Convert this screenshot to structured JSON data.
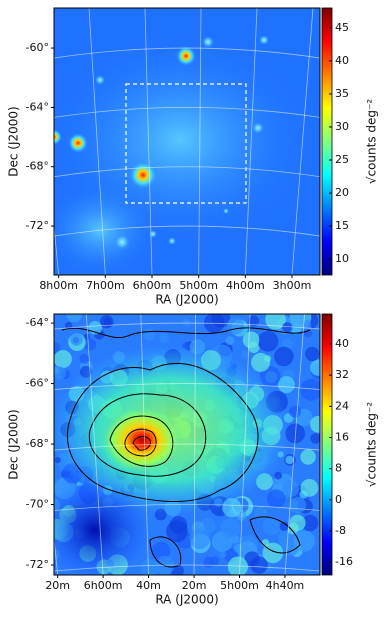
{
  "chart_data": [
    {
      "type": "heatmap",
      "xlabel": "RA (J2000)",
      "ylabel": "Dec (J2000)",
      "colorbar_label": "√counts deg⁻²",
      "xlim": [
        8.1,
        2.4
      ],
      "xticks": [
        {
          "value": 8,
          "label": "8h00m"
        },
        {
          "value": 7,
          "label": "7h00m"
        },
        {
          "value": 6,
          "label": "6h00m"
        },
        {
          "value": 5,
          "label": "5h00m"
        },
        {
          "value": 4,
          "label": "4h00m"
        },
        {
          "value": 3,
          "label": "3h00m"
        }
      ],
      "ylim": [
        -57.3,
        -75.3
      ],
      "yticks": [
        {
          "value": -60,
          "label": "-60°"
        },
        {
          "value": -64,
          "label": "-64°"
        },
        {
          "value": -68,
          "label": "-68°"
        },
        {
          "value": -72,
          "label": "-72°"
        }
      ],
      "clim": [
        7.6,
        48
      ],
      "cticks": [
        10,
        15,
        20,
        25,
        30,
        35,
        40,
        45
      ],
      "colormap": "jet",
      "grid": true
    },
    {
      "type": "heatmap",
      "xlabel": "RA (J2000)",
      "ylabel": "Dec (J2000)",
      "colorbar_label": "√counts deg⁻²",
      "xlim": [
        6.36,
        4.41
      ],
      "xticks": [
        {
          "value": 6.333,
          "label": "20m"
        },
        {
          "value": 6,
          "label": "6h00m"
        },
        {
          "value": 5.667,
          "label": "40m"
        },
        {
          "value": 5.333,
          "label": "20m"
        },
        {
          "value": 5,
          "label": "5h00m"
        },
        {
          "value": 4.667,
          "label": "4h40m"
        }
      ],
      "ylim": [
        -63.7,
        -72.33
      ],
      "yticks": [
        {
          "value": -64,
          "label": "-64°"
        },
        {
          "value": -66,
          "label": "-66°"
        },
        {
          "value": -68,
          "label": "-68°"
        },
        {
          "value": -70,
          "label": "-70°"
        },
        {
          "value": -72,
          "label": "-72°"
        }
      ],
      "clim": [
        -19.3,
        47.7
      ],
      "cticks": [
        40,
        32,
        24,
        16,
        8,
        0,
        -8,
        -16
      ],
      "colormap": "jet",
      "grid": true
    }
  ]
}
